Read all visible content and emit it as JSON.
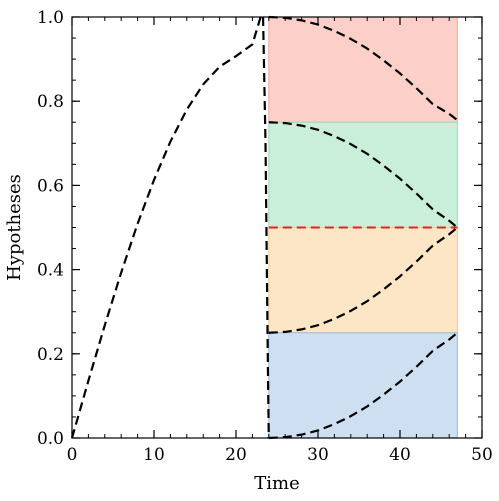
{
  "chart_data": {
    "type": "line",
    "title": "",
    "xlabel": "Time",
    "ylabel": "Hypotheses",
    "xlim": [
      0,
      50
    ],
    "ylim": [
      0,
      1
    ],
    "xticks": [
      "0",
      "10",
      "20",
      "30",
      "40",
      "50"
    ],
    "yticks": [
      "0.0",
      "0.2",
      "0.4",
      "0.6",
      "0.8",
      "1.0"
    ],
    "grid": false,
    "legend": "none",
    "bands": [
      {
        "x_range": [
          24,
          47
        ],
        "y_range": [
          0.75,
          1.0
        ],
        "color": "#fcd0c8",
        "edge": "#f0a898"
      },
      {
        "x_range": [
          24,
          47
        ],
        "y_range": [
          0.5,
          0.75
        ],
        "color": "#c9eed9",
        "edge": "#9fd8b6"
      },
      {
        "x_range": [
          24,
          47
        ],
        "y_range": [
          0.25,
          0.5
        ],
        "color": "#fde6c6",
        "edge": "#f2c893"
      },
      {
        "x_range": [
          24,
          47
        ],
        "y_range": [
          0.0,
          0.25
        ],
        "color": "#cddff0",
        "edge": "#9dbbdc"
      }
    ],
    "series": [
      {
        "style": "dashed",
        "color": "#000000",
        "x": [
          0,
          2,
          4,
          6,
          8,
          10,
          12,
          14,
          16,
          18,
          20,
          22,
          23
        ],
        "y": [
          0.0,
          0.136,
          0.268,
          0.393,
          0.509,
          0.613,
          0.704,
          0.78,
          0.84,
          0.882,
          0.907,
          0.935,
          1.0
        ]
      },
      {
        "style": "dashed",
        "color": "#000000",
        "x": [
          23.3,
          23.6,
          23.9,
          24.0
        ],
        "y": [
          1.0,
          0.7,
          0.15,
          0.0
        ]
      },
      {
        "style": "dashed",
        "color": "#000000",
        "x": [
          24,
          26,
          28,
          30,
          32,
          34,
          36,
          38,
          40,
          42,
          44,
          46,
          47
        ],
        "y": [
          1.0,
          0.998,
          0.992,
          0.982,
          0.967,
          0.948,
          0.925,
          0.897,
          0.866,
          0.831,
          0.793,
          0.77,
          0.755
        ]
      },
      {
        "style": "dashed",
        "color": "#000000",
        "x": [
          24,
          26,
          28,
          30,
          32,
          34,
          36,
          38,
          40,
          42,
          44,
          46,
          47
        ],
        "y": [
          0.75,
          0.748,
          0.742,
          0.732,
          0.717,
          0.698,
          0.675,
          0.647,
          0.616,
          0.581,
          0.543,
          0.516,
          0.5
        ]
      },
      {
        "style": "dashed",
        "color": "#000000",
        "x": [
          24,
          26,
          28,
          30,
          32,
          34,
          36,
          38,
          40,
          42,
          44,
          46,
          47
        ],
        "y": [
          0.25,
          0.252,
          0.258,
          0.268,
          0.283,
          0.302,
          0.325,
          0.353,
          0.384,
          0.419,
          0.457,
          0.484,
          0.5
        ]
      },
      {
        "style": "dashed",
        "color": "#000000",
        "x": [
          24,
          26,
          28,
          30,
          32,
          34,
          36,
          38,
          40,
          42,
          44,
          46,
          47
        ],
        "y": [
          0.0,
          0.002,
          0.008,
          0.018,
          0.033,
          0.052,
          0.075,
          0.103,
          0.134,
          0.169,
          0.207,
          0.234,
          0.25
        ]
      },
      {
        "style": "dashed",
        "color": "#e8231f",
        "x": [
          24,
          47
        ],
        "y": [
          0.5,
          0.5
        ]
      }
    ]
  }
}
